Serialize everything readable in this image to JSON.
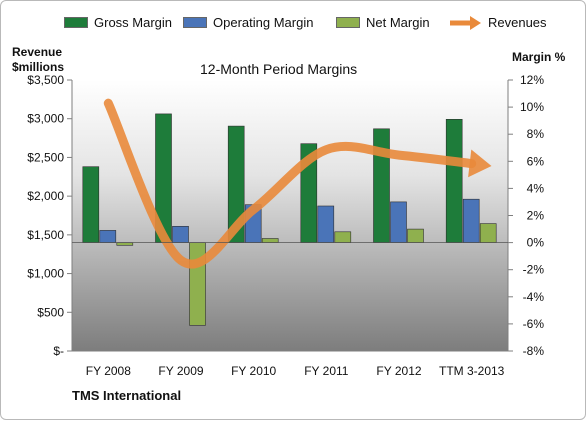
{
  "chart_data": {
    "type": "bar",
    "title": "12-Month Period Margins",
    "categories": [
      "FY 2008",
      "FY 2009",
      "FY 2010",
      "FY 2011",
      "FY 2012",
      "TTM 3-2013"
    ],
    "series": [
      {
        "name": "Gross Margin",
        "axis": "right",
        "type": "bar",
        "color": "#1e7c3a",
        "values": [
          5.6,
          9.5,
          8.6,
          7.3,
          8.4,
          9.1
        ]
      },
      {
        "name": "Operating Margin",
        "axis": "right",
        "type": "bar",
        "color": "#4a74b8",
        "values": [
          0.9,
          1.2,
          2.8,
          2.7,
          3.0,
          3.2
        ]
      },
      {
        "name": "Net Margin",
        "axis": "right",
        "type": "bar",
        "color": "#8fb04e",
        "values": [
          -0.2,
          -6.1,
          0.3,
          0.8,
          1.0,
          1.4
        ]
      },
      {
        "name": "Revenues",
        "axis": "left",
        "type": "line",
        "color": "#e98a3b",
        "values": [
          3200,
          1170,
          1830,
          2600,
          2530,
          2420
        ]
      }
    ],
    "y_left": {
      "title_line1": "Revenue",
      "title_line2": "$millions",
      "min": 0,
      "max": 3500,
      "ticks": [
        {
          "value": 3500,
          "label": "$3,500"
        },
        {
          "value": 3000,
          "label": "$3,000"
        },
        {
          "value": 2500,
          "label": "$2,500"
        },
        {
          "value": 2000,
          "label": "$2,000"
        },
        {
          "value": 1500,
          "label": "$1,500"
        },
        {
          "value": 1000,
          "label": "$1,000"
        },
        {
          "value": 500,
          "label": "$500"
        },
        {
          "value": 0,
          "label": "$-"
        }
      ]
    },
    "y_right": {
      "title": "Margin %",
      "min": -8,
      "max": 12,
      "ticks": [
        {
          "value": 12,
          "label": "12%"
        },
        {
          "value": 10,
          "label": "10%"
        },
        {
          "value": 8,
          "label": "8%"
        },
        {
          "value": 6,
          "label": "6%"
        },
        {
          "value": 4,
          "label": "4%"
        },
        {
          "value": 2,
          "label": "2%"
        },
        {
          "value": 0,
          "label": "0%"
        },
        {
          "value": -2,
          "label": "-2%"
        },
        {
          "value": -4,
          "label": "-4%"
        },
        {
          "value": -6,
          "label": "-6%"
        },
        {
          "value": -8,
          "label": "-8%"
        }
      ]
    },
    "legend_position": "top",
    "grid": false
  },
  "footer": {
    "company": "TMS International"
  }
}
